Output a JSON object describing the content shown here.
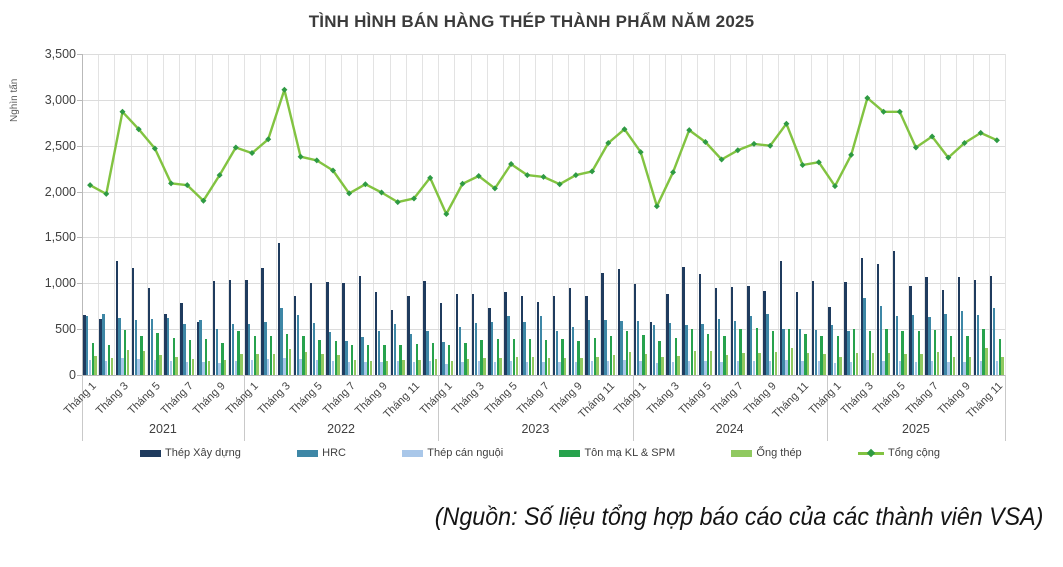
{
  "source_note": "(Nguồn: Số liệu tổng hợp báo cáo của các thành viên VSA)",
  "chart_data": {
    "type": "bar+line",
    "title": "TÌNH HÌNH BÁN HÀNG THÉP THÀNH PHẨM NĂM 2025",
    "ylabel": "Nghìn tấn",
    "ylim": [
      0,
      3500
    ],
    "grid": "on",
    "legend_position": "bottom",
    "y_tick_labels": [
      "3,500",
      "3,000",
      "2,500",
      "2,000",
      "1,500",
      "1,000",
      "500",
      "0"
    ],
    "y_tick_values": [
      3500,
      3000,
      2500,
      2000,
      1500,
      1000,
      500,
      0
    ],
    "year_groups": [
      {
        "label": "2021",
        "months": 10,
        "tick_labels": [
          "Tháng 1",
          "Tháng 3",
          "Tháng 5",
          "Tháng 7",
          "Tháng 9"
        ]
      },
      {
        "label": "2022",
        "months": 12,
        "tick_labels": [
          "Tháng 1",
          "Tháng 3",
          "Tháng 5",
          "Tháng 7",
          "Tháng 9",
          "Tháng 11"
        ]
      },
      {
        "label": "2023",
        "months": 12,
        "tick_labels": [
          "Tháng 1",
          "Tháng 3",
          "Tháng 5",
          "Tháng 7",
          "Tháng 9",
          "Tháng 11"
        ]
      },
      {
        "label": "2024",
        "months": 12,
        "tick_labels": [
          "Tháng 1",
          "Tháng 3",
          "Tháng 5",
          "Tháng 7",
          "Tháng 9",
          "Tháng 11"
        ]
      },
      {
        "label": "2025",
        "months": 11,
        "tick_labels": [
          "Tháng 1",
          "Tháng 3",
          "Tháng 5",
          "Tháng 7",
          "Tháng 9",
          "Tháng 11"
        ]
      }
    ],
    "tick_label_interval": 2,
    "series": [
      {
        "name": "Thép Xây dựng",
        "type": "bar",
        "color": "#1f3b5e",
        "values": [
          [
            650,
            610,
            1240,
            1170,
            945,
            660,
            790,
            580,
            1020,
            1040
          ],
          [
            1040,
            1170,
            1440,
            860,
            1000,
            1010,
            1000,
            1080,
            910,
            710,
            860,
            1020
          ],
          [
            780,
            885,
            880,
            730,
            910,
            860,
            800,
            865,
            950,
            860,
            1115,
            1160
          ],
          [
            990,
            575,
            880,
            1180,
            1100,
            945,
            955,
            965,
            920,
            1245,
            910,
            1025
          ],
          [
            745,
            1010,
            1280,
            1210,
            1350,
            965,
            1065,
            930,
            1065,
            1035,
            1080
          ]
        ]
      },
      {
        "name": "HRC",
        "type": "bar",
        "color": "#3e87a6",
        "values": [
          [
            640,
            665,
            625,
            595,
            615,
            620,
            560,
            600,
            500,
            560
          ],
          [
            560,
            580,
            730,
            650,
            570,
            470,
            370,
            410,
            480,
            560,
            450,
            480
          ],
          [
            360,
            525,
            565,
            575,
            640,
            580,
            640,
            480,
            525,
            595,
            600,
            585
          ],
          [
            585,
            545,
            565,
            540,
            560,
            610,
            585,
            640,
            660,
            500,
            500,
            490
          ],
          [
            540,
            485,
            840,
            755,
            640,
            650,
            635,
            665,
            700,
            650,
            730
          ]
        ]
      },
      {
        "name": "Thép cán nguội",
        "type": "bar",
        "color": "#a9c7e9",
        "values": [
          [
            160,
            150,
            180,
            170,
            165,
            150,
            140,
            140,
            130,
            150
          ],
          [
            160,
            170,
            190,
            170,
            160,
            150,
            140,
            140,
            140,
            150,
            140,
            150
          ],
          [
            120,
            140,
            150,
            140,
            150,
            140,
            140,
            140,
            140,
            150,
            150,
            160
          ],
          [
            150,
            130,
            140,
            150,
            150,
            140,
            150,
            150,
            150,
            160,
            150,
            150
          ],
          [
            130,
            140,
            160,
            150,
            150,
            140,
            150,
            140,
            140,
            150,
            150
          ]
        ]
      },
      {
        "name": "Tôn mạ KL & SPM",
        "type": "bar",
        "color": "#27a24d",
        "values": [
          [
            350,
            330,
            490,
            420,
            455,
            400,
            380,
            390,
            350,
            480
          ],
          [
            430,
            420,
            450,
            420,
            380,
            370,
            330,
            330,
            330,
            330,
            340,
            350
          ],
          [
            330,
            350,
            380,
            390,
            390,
            390,
            380,
            390,
            370,
            400,
            430,
            480
          ],
          [
            440,
            370,
            400,
            500,
            450,
            420,
            500,
            510,
            480,
            500,
            450,
            420
          ],
          [
            420,
            500,
            480,
            500,
            480,
            480,
            490,
            420,
            420,
            500,
            390
          ]
        ]
      },
      {
        "name": "Ống thép",
        "type": "bar",
        "color": "#90c960",
        "values": [
          [
            210,
            180,
            275,
            260,
            220,
            200,
            170,
            150,
            160,
            230
          ],
          [
            230,
            230,
            280,
            250,
            230,
            220,
            160,
            150,
            150,
            160,
            160,
            170
          ],
          [
            150,
            170,
            180,
            190,
            200,
            200,
            190,
            190,
            190,
            200,
            220,
            250
          ],
          [
            230,
            200,
            210,
            260,
            260,
            220,
            240,
            240,
            250,
            290,
            240,
            230
          ],
          [
            200,
            240,
            240,
            240,
            230,
            230,
            250,
            200,
            200,
            290,
            200
          ]
        ]
      },
      {
        "name": "Tổng cộng",
        "type": "line",
        "color": "#82c341",
        "marker_color": "#2e9a43",
        "values": [
          [
            2070,
            1975,
            2870,
            2680,
            2470,
            2090,
            2070,
            1900,
            2180,
            2480
          ],
          [
            2420,
            2570,
            3110,
            2380,
            2340,
            2230,
            1980,
            2080,
            1990,
            1885,
            1925,
            2150
          ],
          [
            1755,
            2085,
            2170,
            2035,
            2300,
            2180,
            2160,
            2080,
            2180,
            2220,
            2530,
            2680
          ],
          [
            2430,
            1840,
            2210,
            2670,
            2540,
            2350,
            2450,
            2520,
            2500,
            2740,
            2290,
            2320
          ],
          [
            2060,
            2400,
            3020,
            2870,
            2870,
            2480,
            2600,
            2370,
            2530,
            2640,
            2560
          ]
        ]
      }
    ]
  }
}
